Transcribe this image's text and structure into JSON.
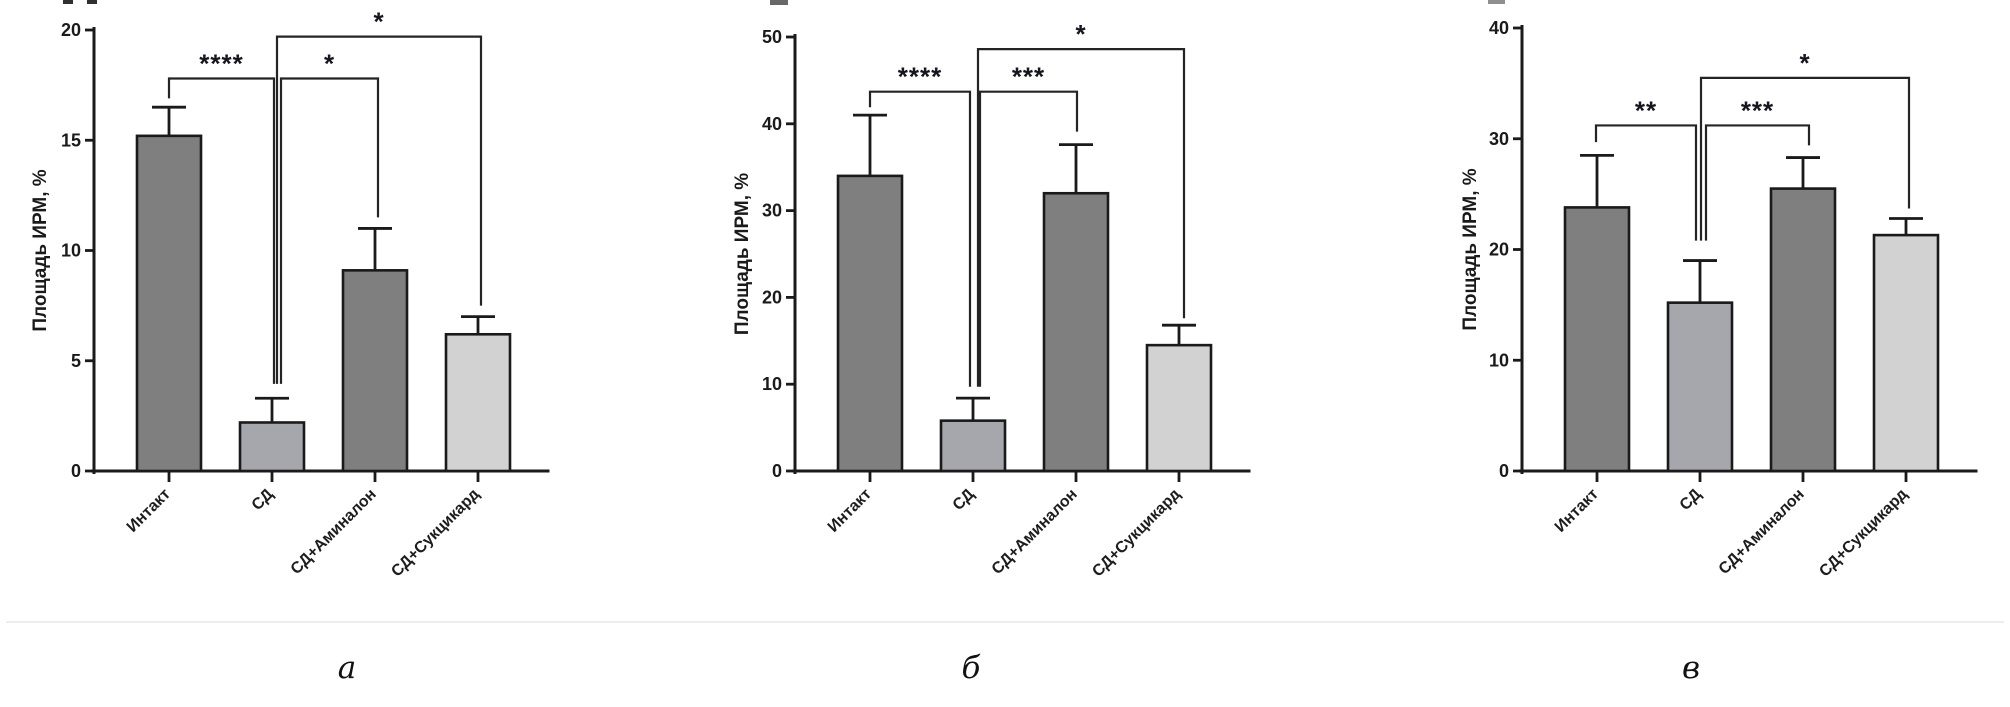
{
  "figure": {
    "description": "Three bar chart panels comparing Площадь ИРМ, % across experimental groups",
    "divider": true
  },
  "chart_data": [
    {
      "type": "bar",
      "panel_caption": "а",
      "title": "",
      "xlabel": "",
      "ylabel": "Площадь ИРМ, %",
      "categories": [
        "Интакт",
        "СД",
        "СД+Аминалон",
        "СД+Сукцикард"
      ],
      "values": [
        15.2,
        2.2,
        9.1,
        6.2
      ],
      "errors_upper": [
        1.3,
        1.1,
        1.9,
        0.8
      ],
      "ylim": [
        0,
        20
      ],
      "yticks": [
        0,
        5,
        10,
        15,
        20
      ],
      "grid": false,
      "legend": "none",
      "bar_colors": [
        "#7f7f7f",
        "#a6a6ad",
        "#7f7f7f",
        "#d2d2d2"
      ],
      "significance": [
        {
          "from": 0,
          "to": 1,
          "label": "****",
          "level": 17.8,
          "left_end": 16.9,
          "right_end": 3.95,
          "left_dx": 0,
          "right_dx": 2
        },
        {
          "from": 1,
          "to": 2,
          "label": "*",
          "level": 17.8,
          "left_end": 3.95,
          "right_end": 11.5,
          "left_dx": 9,
          "right_dx": 3
        },
        {
          "from": 1,
          "to": 3,
          "label": "*",
          "level": 19.7,
          "left_end": 3.95,
          "right_end": 7.5,
          "left_dx": 5,
          "right_dx": 3
        }
      ]
    },
    {
      "type": "bar",
      "panel_caption": "б",
      "title": "",
      "xlabel": "",
      "ylabel": "Площадь ИРМ, %",
      "categories": [
        "Интакт",
        "СД",
        "СД+Аминалон",
        "СД+Сукцикард"
      ],
      "values": [
        34,
        5.8,
        32,
        14.5
      ],
      "errors_upper": [
        7.0,
        2.6,
        5.6,
        2.3
      ],
      "ylim": [
        0,
        50
      ],
      "yticks": [
        0,
        10,
        20,
        30,
        40,
        50
      ],
      "grid": false,
      "legend": "none",
      "bar_colors": [
        "#7f7f7f",
        "#a6a6ad",
        "#7f7f7f",
        "#d2d2d2"
      ],
      "significance": [
        {
          "from": 0,
          "to": 1,
          "label": "****",
          "level": 43.7,
          "left_end": 41.9,
          "right_end": 9.7,
          "left_dx": 0,
          "right_dx": -3
        },
        {
          "from": 1,
          "to": 2,
          "label": "***",
          "level": 43.7,
          "left_end": 9.7,
          "right_end": 39.1,
          "left_dx": 7,
          "right_dx": 1
        },
        {
          "from": 1,
          "to": 3,
          "label": "*",
          "level": 48.6,
          "left_end": 9.7,
          "right_end": 17.6,
          "left_dx": 5,
          "right_dx": 5
        }
      ]
    },
    {
      "type": "bar",
      "panel_caption": "в",
      "title": "",
      "xlabel": "",
      "ylabel": "Площадь ИРМ, %",
      "categories": [
        "Интакт",
        "СД",
        "СД+Аминалон",
        "СД+Сукцикард"
      ],
      "values": [
        23.8,
        15.2,
        25.5,
        21.3
      ],
      "errors_upper": [
        4.7,
        3.8,
        2.8,
        1.5
      ],
      "ylim": [
        0,
        40
      ],
      "yticks": [
        0,
        10,
        20,
        30,
        40
      ],
      "grid": false,
      "legend": "none",
      "bar_colors": [
        "#7f7f7f",
        "#a6a6ad",
        "#7f7f7f",
        "#d2d2d2"
      ],
      "significance": [
        {
          "from": 0,
          "to": 1,
          "label": "**",
          "level": 31.2,
          "left_end": 29.7,
          "right_end": 20.8,
          "left_dx": -1,
          "right_dx": -4
        },
        {
          "from": 1,
          "to": 2,
          "label": "***",
          "level": 31.2,
          "left_end": 20.8,
          "right_end": 29.4,
          "left_dx": 6,
          "right_dx": 6
        },
        {
          "from": 1,
          "to": 3,
          "label": "*",
          "level": 35.5,
          "left_end": 20.8,
          "right_end": 23.7,
          "left_dx": 1,
          "right_dx": 3
        }
      ]
    }
  ]
}
